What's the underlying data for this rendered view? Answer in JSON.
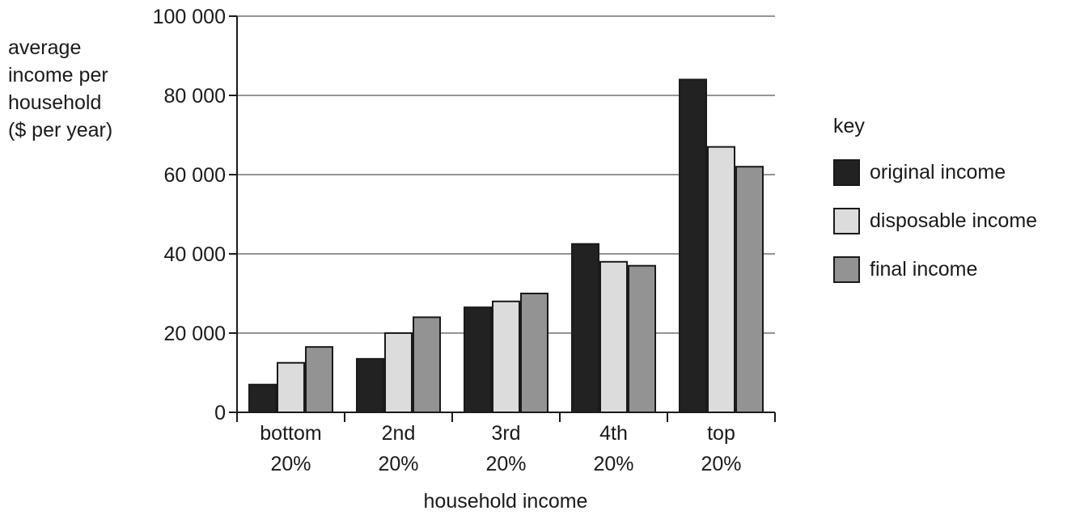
{
  "chart_data": {
    "type": "bar",
    "categories": [
      [
        "bottom",
        "20%"
      ],
      [
        "2nd",
        "20%"
      ],
      [
        "3rd",
        "20%"
      ],
      [
        "4th",
        "20%"
      ],
      [
        "top",
        "20%"
      ]
    ],
    "series": [
      {
        "name": "original income",
        "color": "#222222",
        "values": [
          7000,
          13500,
          26500,
          42500,
          84000
        ]
      },
      {
        "name": "disposable income",
        "color": "#dcdcdc",
        "values": [
          12500,
          20000,
          28000,
          38000,
          67000
        ]
      },
      {
        "name": "final income",
        "color": "#939393",
        "values": [
          16500,
          24000,
          30000,
          37000,
          62000
        ]
      }
    ],
    "y_ticks": [
      "0",
      "20 000",
      "40 000",
      "60 000",
      "80 000",
      "100 000"
    ],
    "y_tick_values": [
      0,
      20000,
      40000,
      60000,
      80000,
      100000
    ],
    "ylim": [
      0,
      100000
    ],
    "ylabel_lines": [
      "average",
      "income per",
      "household",
      "($ per year)"
    ],
    "xlabel": "household income",
    "legend_title": "key",
    "legend_position": "right",
    "grid": true
  }
}
